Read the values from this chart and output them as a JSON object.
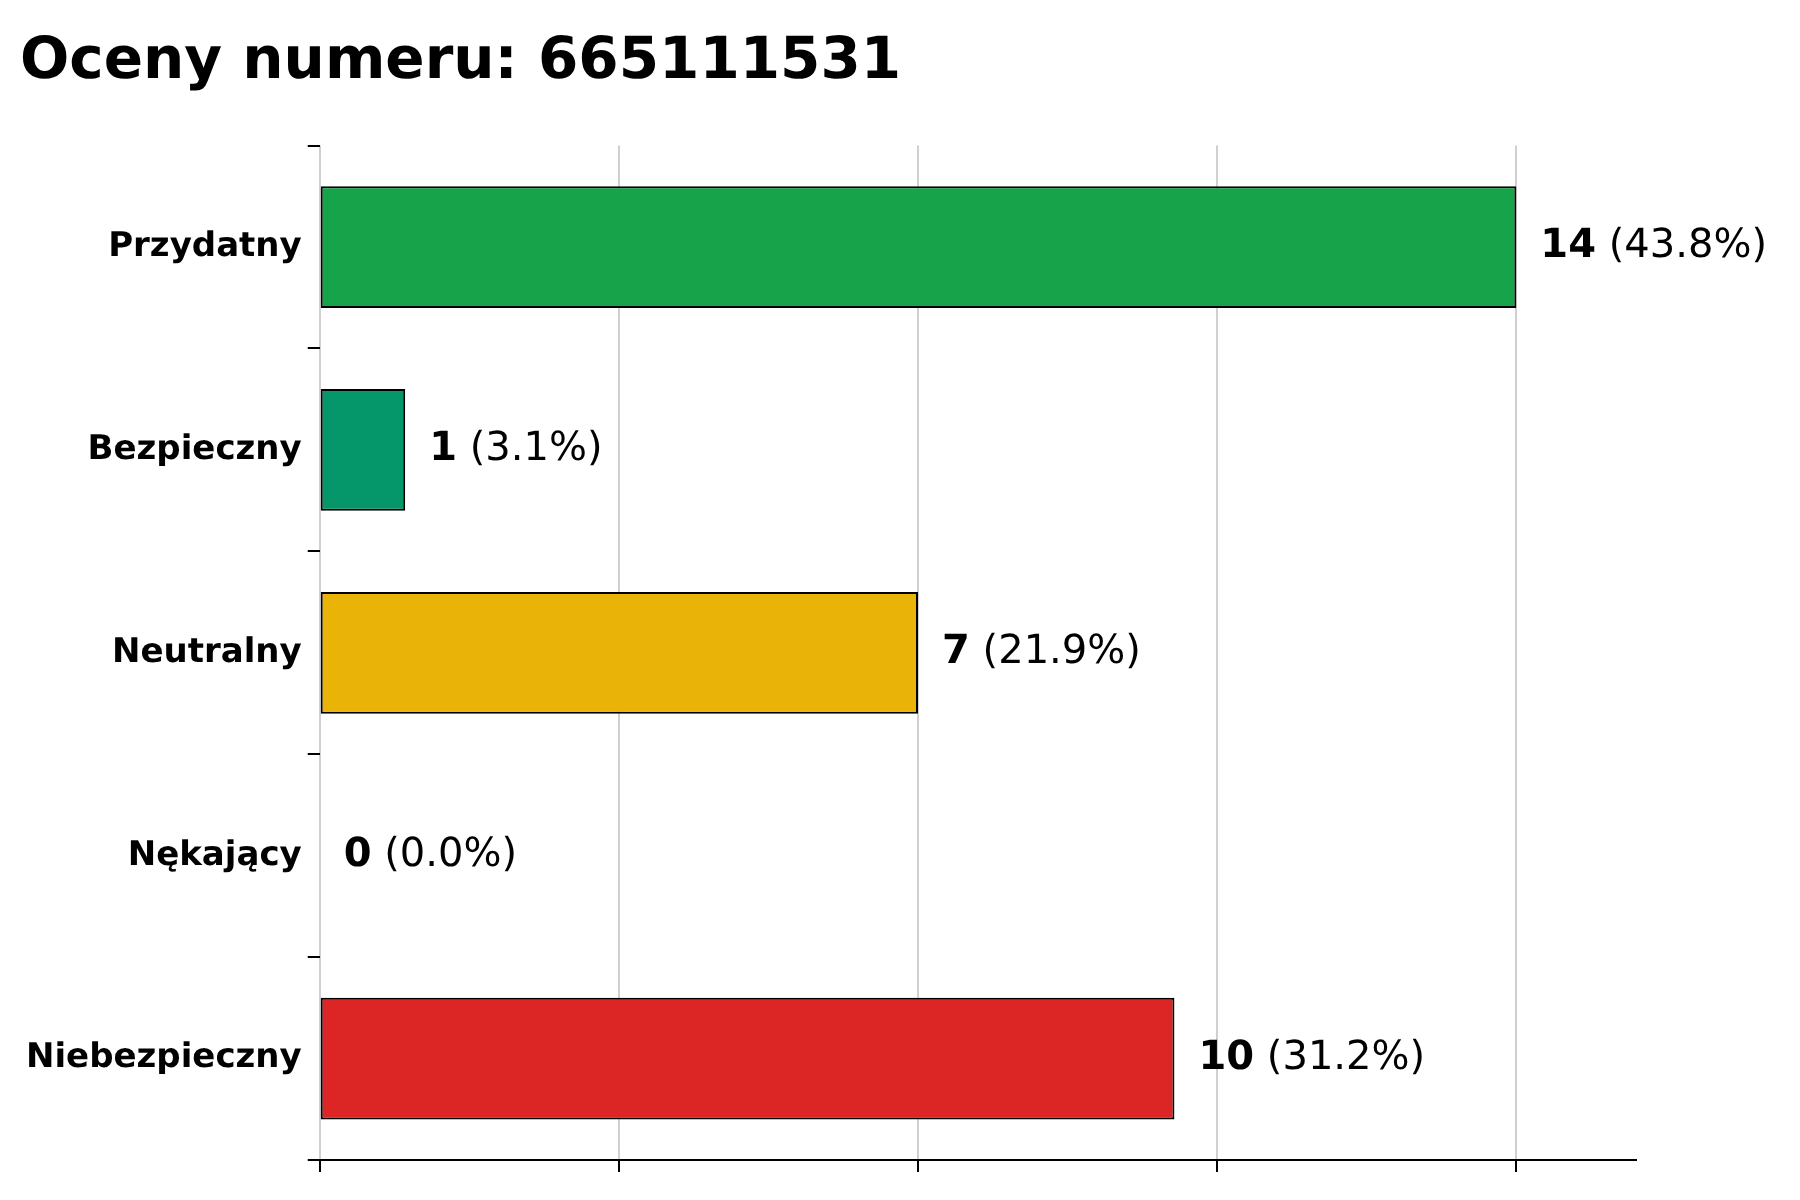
{
  "chart_data": {
    "type": "bar",
    "orientation": "horizontal",
    "title": "Oceny numeru: 665111531",
    "categories": [
      "Przydatny",
      "Bezpieczny",
      "Neutralny",
      "Nękający",
      "Niebezpieczny"
    ],
    "values": [
      14,
      1,
      7,
      0,
      10
    ],
    "colors": [
      "#16a34a",
      "#059669",
      "#eab308",
      "#ea580c",
      "#dc2626"
    ],
    "value_labels": [
      "14 (43.8%)",
      "1 (3.1%)",
      "7 (21.9%)",
      "0 (0.0%)",
      "10 (31.2%)"
    ],
    "xlim": [
      0,
      15.4
    ],
    "xticks": [
      {
        "value": 0,
        "label": null
      },
      {
        "value": 3.5,
        "label": null
      },
      {
        "value": 7,
        "label": null
      },
      {
        "value": 10.5,
        "label": null
      },
      {
        "value": 14,
        "label": null
      }
    ],
    "tick_labels": "y",
    "grid": "x",
    "legend": false
  }
}
